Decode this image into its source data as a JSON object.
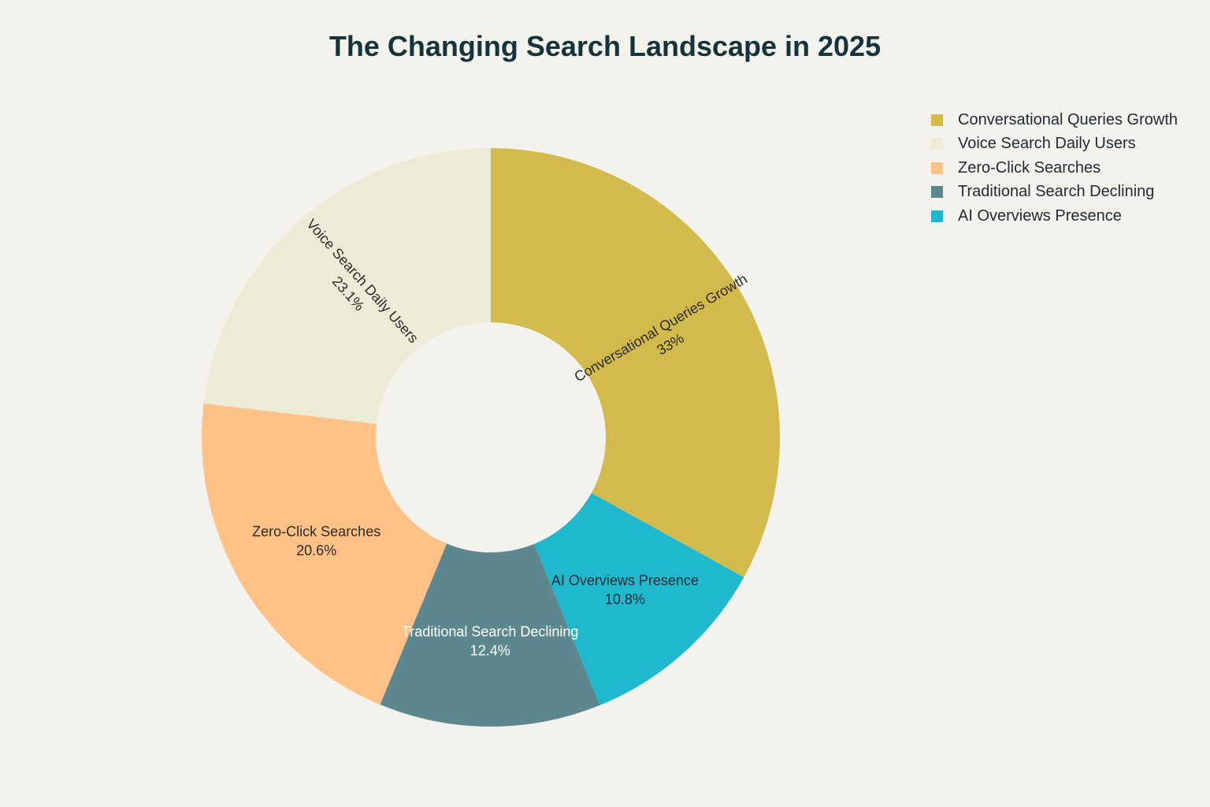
{
  "chart_data": {
    "type": "pie",
    "donut": true,
    "title": "The Changing Search Landscape in 2025",
    "legend_position": "top-right",
    "slices": [
      {
        "label": "Conversational Queries Growth",
        "value": 33,
        "value_text": "33%",
        "color": "#D2BA4C",
        "text_color": "#2A2A2A"
      },
      {
        "label": "AI Overviews Presence",
        "value": 10.8,
        "value_text": "10.8%",
        "color": "#1FB8CD",
        "text_color": "#1F2A33"
      },
      {
        "label": "Traditional Search Declining",
        "value": 12.4,
        "value_text": "12.4%",
        "color": "#5D878F",
        "text_color": "#FFFFFF"
      },
      {
        "label": "Zero-Click Searches",
        "value": 20.6,
        "value_text": "20.6%",
        "color": "#FFC185",
        "text_color": "#2A2A2A"
      },
      {
        "label": "Voice Search Daily Users",
        "value": 23.1,
        "value_text": "23.1%",
        "color": "#ECEBD5",
        "text_color": "#2A2A2A"
      }
    ],
    "legend": [
      {
        "label": "Conversational Queries Growth",
        "color": "#D2BA4C"
      },
      {
        "label": "Voice Search Daily Users",
        "color": "#ECEBD5"
      },
      {
        "label": "Zero-Click Searches",
        "color": "#FFC185"
      },
      {
        "label": "Traditional Search Declining",
        "color": "#5D878F"
      },
      {
        "label": "AI Overviews Presence",
        "color": "#1FB8CD"
      }
    ]
  }
}
